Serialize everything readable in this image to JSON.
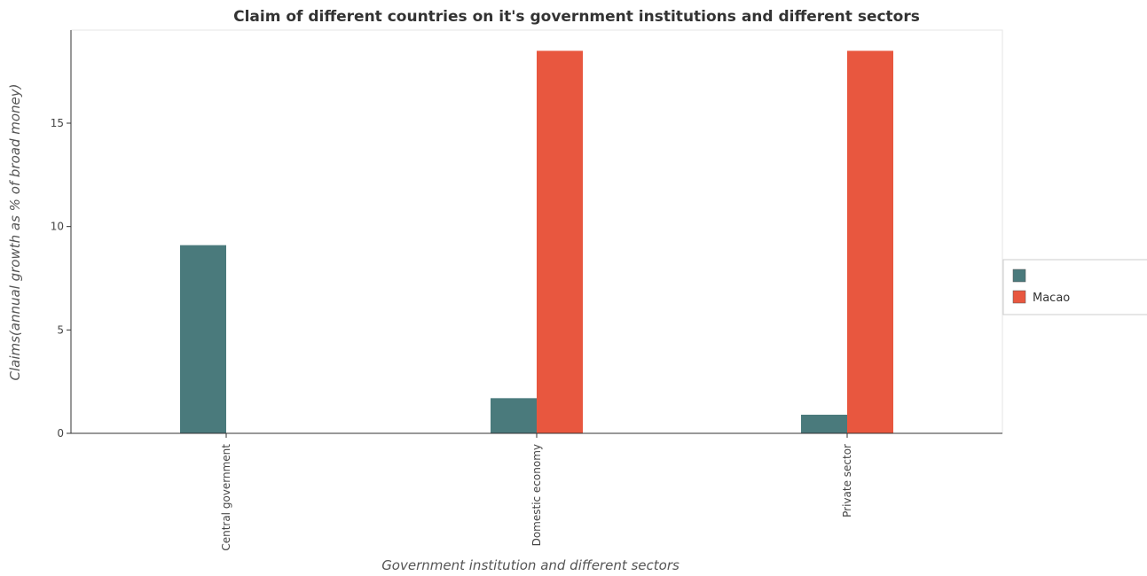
{
  "chart_data": {
    "type": "bar",
    "title": "Claim of different countries on it's government institutions and different sectors",
    "xlabel": "Government institution and different sectors",
    "ylabel": "Claims(annual growth as % of broad money)",
    "categories": [
      "Central government",
      "Domestic economy",
      "Private sector"
    ],
    "ylim": [
      0,
      19.5
    ],
    "yticks": [
      0,
      5,
      10,
      15
    ],
    "series": [
      {
        "name": "",
        "color": "#4a7a7c",
        "values": [
          9.1,
          1.7,
          0.9
        ]
      },
      {
        "name": "Macao",
        "color": "#e8573f",
        "values": [
          0,
          18.5,
          18.5
        ]
      }
    ],
    "legend_position": "right",
    "grid": false
  }
}
